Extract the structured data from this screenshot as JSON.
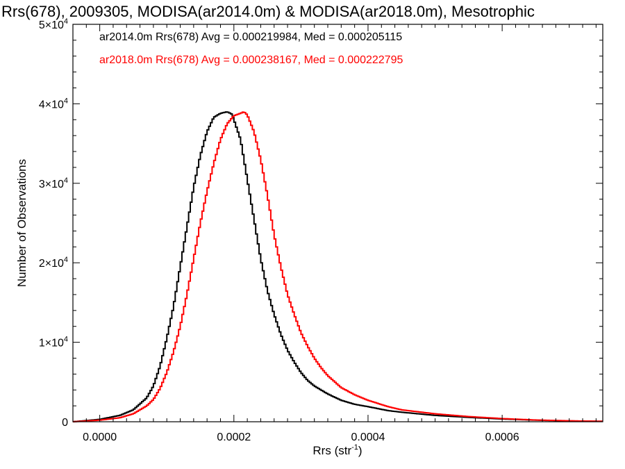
{
  "chart_data": {
    "type": "histogram",
    "title": "Rrs(678), 2009305, MODISA(ar2014.0m) & MODISA(ar2018.0m), Mesotrophic",
    "xlabel": "Rrs (str",
    "xlabel_sup": "-1",
    "xlabel_close": ")",
    "ylabel": "Number of Observations",
    "xlim": [
      -4e-05,
      0.00075
    ],
    "ylim": [
      0,
      50000
    ],
    "x_ticks": [
      {
        "value": 0.0,
        "label": "0.0000"
      },
      {
        "value": 0.0002,
        "label": "0.0002"
      },
      {
        "value": 0.0004,
        "label": "0.0004"
      },
      {
        "value": 0.0006,
        "label": "0.0006"
      }
    ],
    "y_ticks": [
      {
        "value": 0,
        "label": "0"
      },
      {
        "value": 10000,
        "base": "1×10",
        "exp": "4"
      },
      {
        "value": 20000,
        "base": "2×10",
        "exp": "4"
      },
      {
        "value": 30000,
        "base": "3×10",
        "exp": "4"
      },
      {
        "value": 40000,
        "base": "4×10",
        "exp": "4"
      },
      {
        "value": 50000,
        "base": "5×10",
        "exp": "4"
      }
    ],
    "grid": false,
    "series": [
      {
        "name": "ar2014.0m",
        "color": "#000000",
        "stats_text": "ar2014.0m Rrs(678) Avg = 0.000219984, Med = 0.000205115",
        "x": [
          -4e-05,
          0.0,
          3e-05,
          5e-05,
          7e-05,
          8e-05,
          9e-05,
          0.0001,
          0.00011,
          0.00012,
          0.00013,
          0.00014,
          0.00015,
          0.00016,
          0.00017,
          0.00018,
          0.00019,
          0.000197,
          0.0002,
          0.00021,
          0.00022,
          0.00023,
          0.00024,
          0.00025,
          0.00026,
          0.00027,
          0.00028,
          0.00029,
          0.0003,
          0.00031,
          0.00032,
          0.00034,
          0.00036,
          0.00038,
          0.0004,
          0.00043,
          0.00045,
          0.0005,
          0.00055,
          0.0006,
          0.00065,
          0.0007,
          0.00075
        ],
        "y": [
          0,
          300,
          800,
          1500,
          3000,
          4500,
          7000,
          10500,
          14500,
          19500,
          24500,
          29500,
          33500,
          36500,
          38300,
          38800,
          39000,
          38700,
          38000,
          35500,
          30500,
          25500,
          20500,
          16500,
          13500,
          11000,
          9000,
          7500,
          6200,
          5200,
          4500,
          3500,
          2700,
          2200,
          1900,
          1400,
          1200,
          800,
          550,
          350,
          200,
          100,
          50
        ]
      },
      {
        "name": "ar2018.0m",
        "color": "#ff0000",
        "stats_text": "ar2018.0m Rrs(678) Avg = 0.000238167, Med = 0.000222795",
        "x": [
          -4e-05,
          0.0,
          3e-05,
          5e-05,
          7e-05,
          8e-05,
          9e-05,
          0.0001,
          0.00011,
          0.00012,
          0.00013,
          0.00014,
          0.00015,
          0.00016,
          0.00017,
          0.00018,
          0.00019,
          0.0002,
          0.00021,
          0.000215,
          0.00022,
          0.00023,
          0.00024,
          0.00025,
          0.00026,
          0.00027,
          0.00028,
          0.00029,
          0.0003,
          0.00031,
          0.00032,
          0.00033,
          0.00034,
          0.00036,
          0.00038,
          0.0004,
          0.00043,
          0.00045,
          0.0005,
          0.00055,
          0.0006,
          0.00065,
          0.0007,
          0.00075
        ],
        "y": [
          0,
          200,
          500,
          1000,
          2000,
          2800,
          4200,
          6200,
          8800,
          12000,
          16000,
          20500,
          25000,
          29000,
          32500,
          35500,
          37500,
          38500,
          38800,
          39000,
          38600,
          36500,
          33000,
          28500,
          23500,
          19500,
          16000,
          13500,
          11200,
          9500,
          8000,
          6800,
          5800,
          4300,
          3400,
          2700,
          1900,
          1500,
          1000,
          650,
          400,
          220,
          120,
          60
        ]
      }
    ]
  }
}
